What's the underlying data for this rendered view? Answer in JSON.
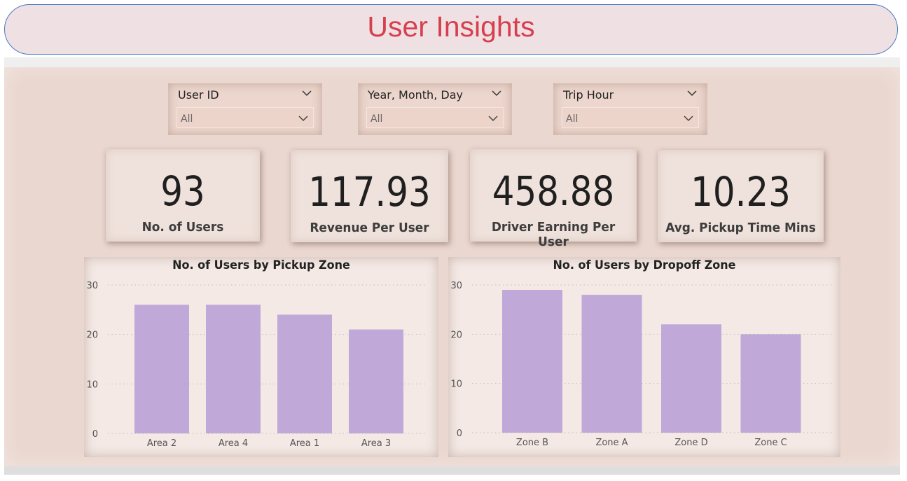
{
  "header": {
    "title": "User Insights"
  },
  "slicers": [
    {
      "label": "User ID",
      "value": "All"
    },
    {
      "label": "Year, Month, Day",
      "value": "All"
    },
    {
      "label": "Trip Hour",
      "value": "All"
    }
  ],
  "cards": [
    {
      "value": "93",
      "label": "No. of Users"
    },
    {
      "value": "117.93",
      "label": "Revenue Per User"
    },
    {
      "value": "458.88",
      "label": "Driver Earning Per User"
    },
    {
      "value": "10.23",
      "label": "Avg. Pickup Time Mins"
    }
  ],
  "colors": {
    "bar": "#c0a8d8",
    "title": "#d6404e",
    "panel": "#ead7cf"
  },
  "chart_data": [
    {
      "type": "bar",
      "title": "No. of Users by Pickup Zone",
      "categories": [
        "Area 2",
        "Area 4",
        "Area 1",
        "Area 3"
      ],
      "values": [
        26,
        26,
        24,
        21
      ],
      "ylim": [
        0,
        30
      ],
      "yticks": [
        0,
        10,
        20,
        30
      ],
      "grid": true,
      "xlabel": "",
      "ylabel": ""
    },
    {
      "type": "bar",
      "title": "No. of Users by Dropoff Zone",
      "categories": [
        "Zone B",
        "Zone A",
        "Zone D",
        "Zone C"
      ],
      "values": [
        29,
        28,
        22,
        20
      ],
      "ylim": [
        0,
        30
      ],
      "yticks": [
        0,
        10,
        20,
        30
      ],
      "grid": true,
      "xlabel": "",
      "ylabel": ""
    }
  ]
}
